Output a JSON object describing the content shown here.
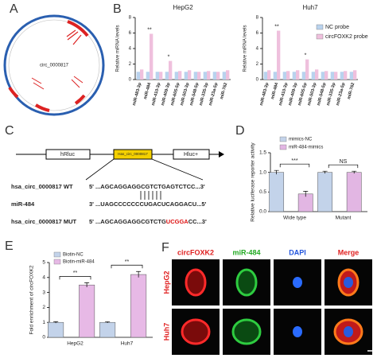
{
  "panels": {
    "a": "A",
    "b": "B",
    "c": "C",
    "d": "D",
    "e": "E",
    "f": "F"
  },
  "circos": {
    "label": "circ_0000817"
  },
  "construct": {
    "left": "hRluc",
    "insert": "Has_circ_0000817",
    "right": "Hluc+",
    "rows": [
      {
        "name": "hsa_circ_0000817 WT",
        "parts": [
          "5' ...AGCAGGAGGCGTCTGAGTCTCC...3'"
        ]
      },
      {
        "name": "miR-484",
        "parts": [
          "3' ...UAGCCCCCCCUGACUCAGGACU...5'"
        ]
      },
      {
        "name": "hsa_circ_0000817 MUT",
        "parts": [
          "5' ...AGCAGGAGGCGTCTG",
          "UCGGA",
          "CC...3'"
        ]
      }
    ]
  },
  "imaging": {
    "columns": [
      "circFOXK2",
      "miR-484",
      "DAPI",
      "Merge"
    ],
    "rows": [
      "HepG2",
      "Huh7"
    ]
  },
  "chart_data": [
    {
      "type": "bar",
      "title": "HepG2",
      "ylabel": "Relative miRNA levels",
      "categories": [
        "miR-483-3p",
        "miR-484",
        "miR-410-3p",
        "miR-409-3p",
        "miR-605-5p",
        "miR-503-3p",
        "miR-548-5p",
        "miR-335-3p",
        "miR-23a-5p",
        "miR-762"
      ],
      "series": [
        {
          "name": "NC probe",
          "color": "#b9d3ee",
          "values": [
            1,
            1,
            1,
            1,
            1,
            1,
            1,
            1,
            1,
            1
          ]
        },
        {
          "name": "circFOXK2 probe",
          "color": "#efc0dd",
          "values": [
            1.3,
            5.9,
            1.0,
            2.4,
            1.1,
            1.2,
            1.0,
            1.1,
            1.0,
            1.2
          ]
        }
      ],
      "ylim": [
        0,
        8
      ],
      "yticks": [
        0,
        2,
        4,
        6,
        8
      ],
      "annotations": [
        {
          "text": "**",
          "category": "miR-484"
        },
        {
          "text": "*",
          "category": "miR-409-3p"
        }
      ]
    },
    {
      "type": "bar",
      "title": "Huh7",
      "ylabel": "Relative miRNA levels",
      "legend": "top-right",
      "categories": [
        "miR-483-3p",
        "miR-484",
        "miR-410-3p",
        "miR-409-3p",
        "miR-605-5p",
        "miR-503-3p",
        "miR-548-5p",
        "miR-335-3p",
        "miR-23a-5p",
        "miR-762"
      ],
      "series": [
        {
          "name": "NC probe",
          "color": "#b9d3ee",
          "values": [
            1,
            1,
            1,
            1,
            1,
            1,
            1,
            1,
            1,
            1
          ]
        },
        {
          "name": "circFOXK2 probe",
          "color": "#efc0dd",
          "values": [
            1.2,
            6.3,
            1.1,
            1.2,
            2.6,
            1.3,
            1.1,
            1.0,
            1.1,
            1.2
          ]
        }
      ],
      "ylim": [
        0,
        8
      ],
      "yticks": [
        0,
        2,
        4,
        6,
        8
      ],
      "annotations": [
        {
          "text": "**",
          "category": "miR-484"
        },
        {
          "text": "*",
          "category": "miR-605-5p"
        }
      ]
    },
    {
      "type": "bar",
      "ylabel": "Relative luciferase reporter activity",
      "legend": "top",
      "categories": [
        "Wide type",
        "Mutant"
      ],
      "series": [
        {
          "name": "mimics-NC",
          "color": "#c3d3ea",
          "values": [
            1.0,
            1.0
          ],
          "errors": [
            0.05,
            0.03
          ]
        },
        {
          "name": "miR-484-mimics",
          "color": "#e2b6e3",
          "values": [
            0.45,
            1.0
          ],
          "errors": [
            0.07,
            0.03
          ]
        }
      ],
      "ylim": [
        0,
        1.5
      ],
      "yticks": [
        {
          "value": 0,
          "label": "0.0"
        },
        {
          "value": 0.5,
          "label": "0.5"
        },
        {
          "value": 1,
          "label": "1.0"
        },
        {
          "value": 1.5,
          "label": "1.5"
        }
      ],
      "annotations": [
        {
          "text": "***",
          "category": "Wide type"
        },
        {
          "text": "NS",
          "category": "Mutant"
        }
      ]
    },
    {
      "type": "bar",
      "ylabel": "Fold enrichment of circFOXK2",
      "legend": "top-left",
      "categories": [
        "HepG2",
        "Huh7"
      ],
      "series": [
        {
          "name": "Biotin-NC",
          "color": "#c3d3ea",
          "values": [
            1.0,
            1.0
          ],
          "errors": [
            0.05,
            0.04
          ]
        },
        {
          "name": "Biotin-miR-484",
          "color": "#e7b9e6",
          "values": [
            3.5,
            4.2
          ],
          "errors": [
            0.15,
            0.2
          ]
        }
      ],
      "ylim": [
        0,
        5
      ],
      "yticks": [
        0,
        1,
        2,
        3,
        4,
        5
      ],
      "annotations": [
        {
          "text": "**",
          "category": "HepG2"
        },
        {
          "text": "**",
          "category": "Huh7"
        }
      ]
    }
  ]
}
